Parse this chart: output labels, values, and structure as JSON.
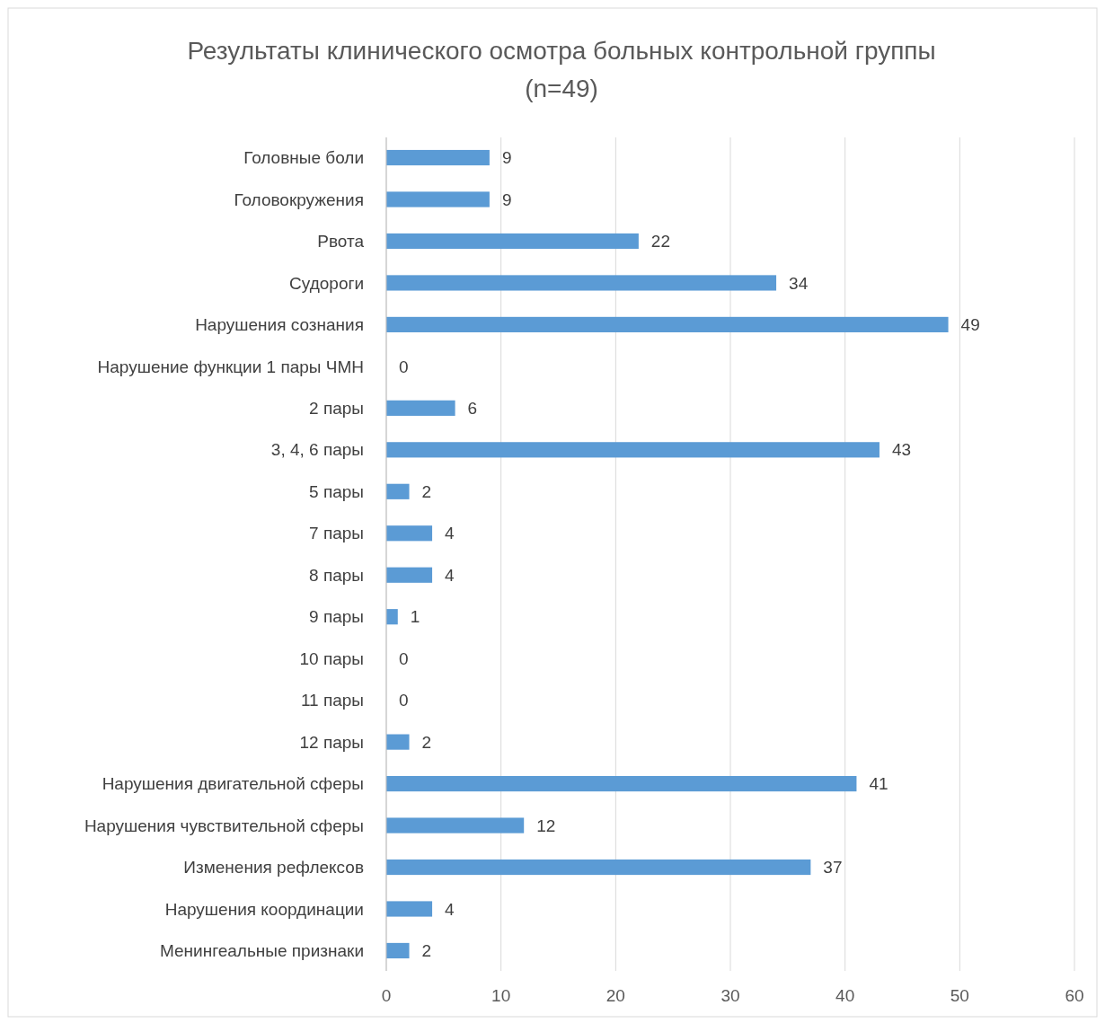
{
  "chart_data": {
    "type": "bar",
    "orientation": "horizontal",
    "title": "Результаты клинического осмотра больных контрольной группы\n(n=49)",
    "categories": [
      "Головные боли",
      "Головокружения",
      "Рвота",
      "Судороги",
      "Нарушения сознания",
      "Нарушение функции 1 пары ЧМН",
      "2 пары",
      "3, 4, 6 пары",
      "5 пары",
      "7 пары",
      "8 пары",
      "9 пары",
      "10 пары",
      "11 пары",
      "12 пары",
      "Нарушения двигательной сферы",
      "Нарушения чувствительной сферы",
      "Изменения рефлексов",
      "Нарушения координации",
      "Менингеальные признаки"
    ],
    "values": [
      9,
      9,
      22,
      34,
      49,
      0,
      6,
      43,
      2,
      4,
      4,
      1,
      0,
      0,
      2,
      41,
      12,
      37,
      4,
      2
    ],
    "color": "#5b9bd5",
    "xlim": [
      0,
      60
    ],
    "xticks": [
      0,
      10,
      20,
      30,
      40,
      50,
      60
    ],
    "grid": "x",
    "data_labels": true
  }
}
